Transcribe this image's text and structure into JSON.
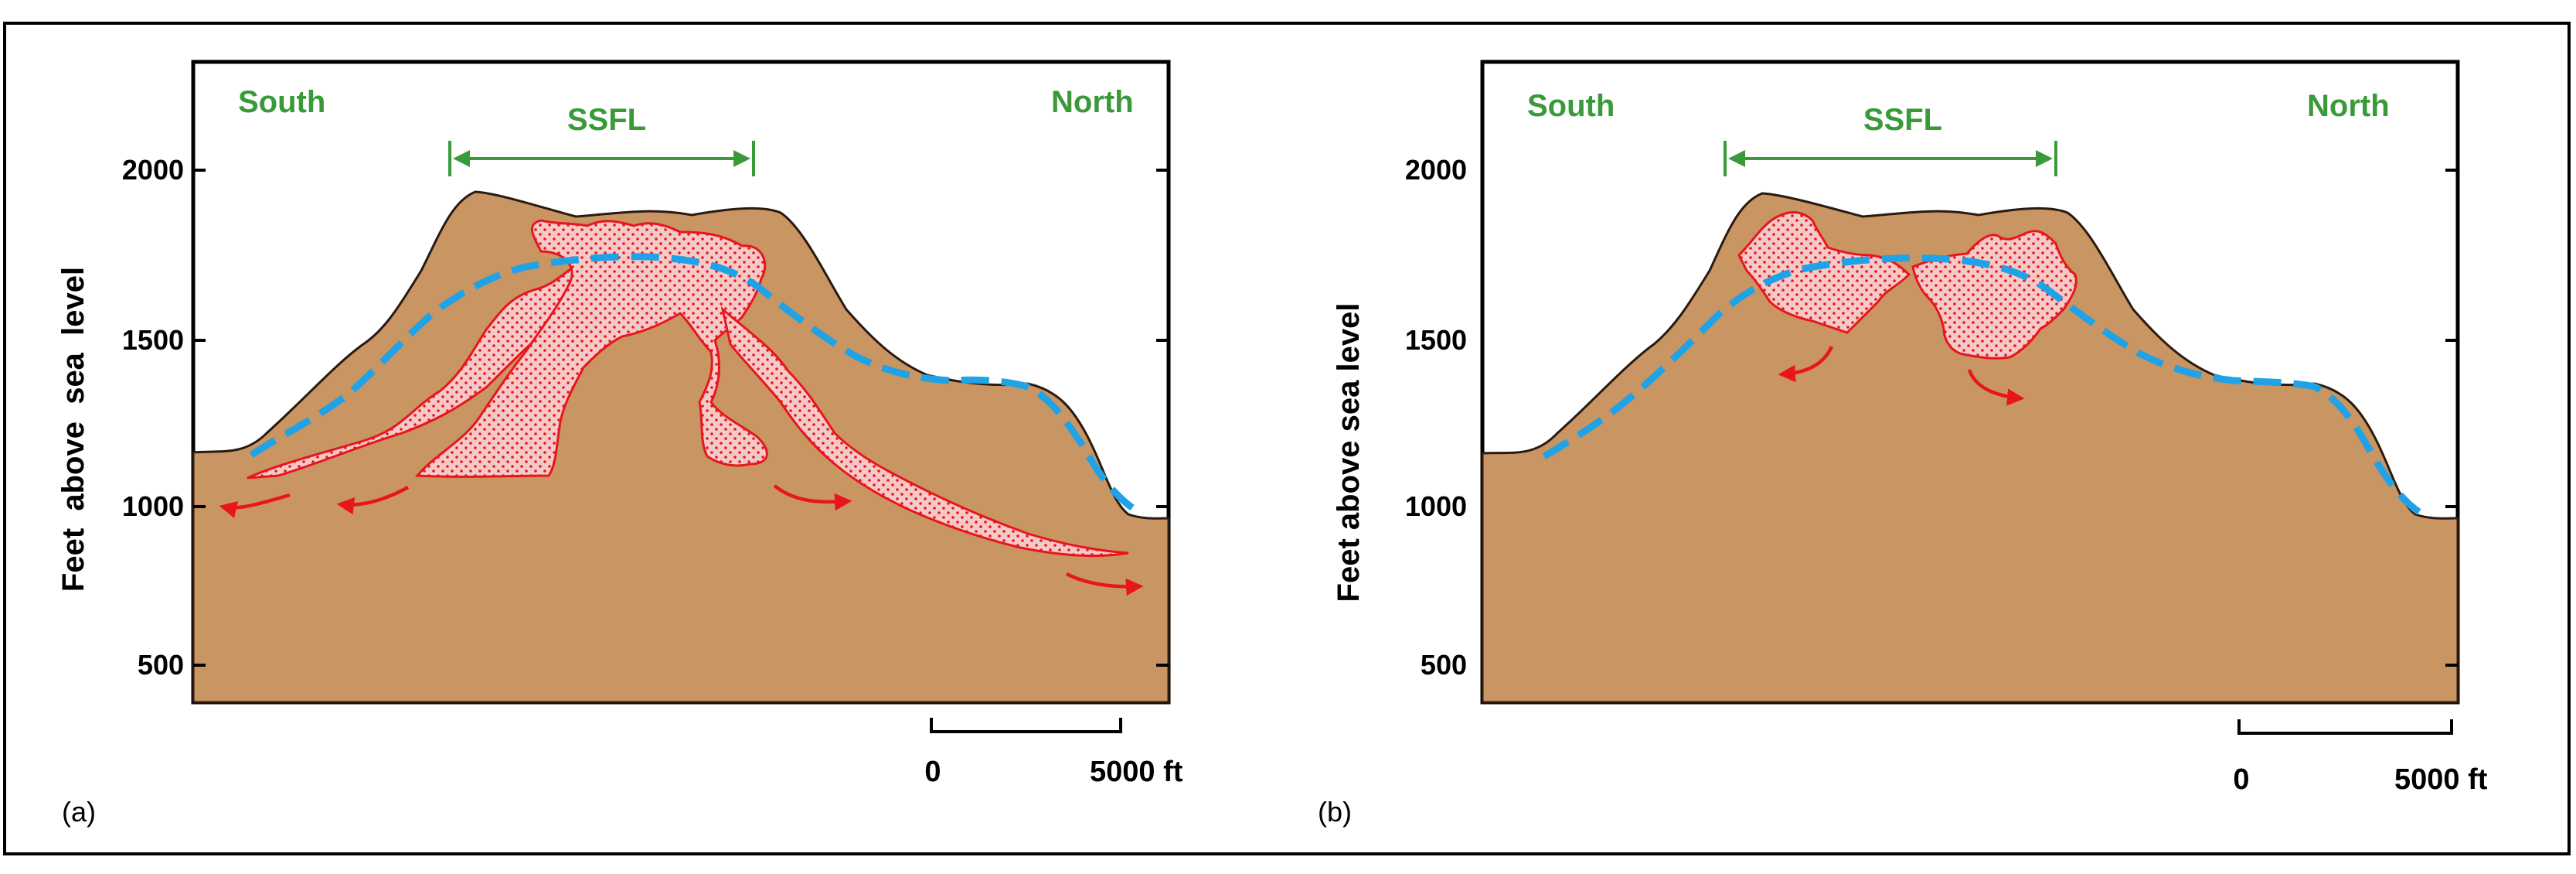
{
  "panels": [
    {
      "id": "a",
      "panel_label": "(a)",
      "y_axis_label": "Feet  above  sea  level",
      "y_ticks": [
        "2000",
        "1500",
        "1000",
        "500"
      ],
      "south_label": "South",
      "north_label": "North",
      "site_label": "SSFL",
      "scale_zero": "0",
      "scale_end": "5000 ft"
    },
    {
      "id": "b",
      "panel_label": "(b)",
      "y_axis_label": "Feet above sea level",
      "y_ticks": [
        "2000",
        "1500",
        "1000",
        "500"
      ],
      "south_label": "South",
      "north_label": "North",
      "site_label": "SSFL",
      "scale_zero": "0",
      "scale_end": "5000 ft"
    }
  ],
  "colors": {
    "ground": "#c99563",
    "ground_outline": "#2a1a10",
    "plume_fill": "#f6c9c9",
    "plume_outline": "#e8161c",
    "water_table": "#1fa2e6",
    "flow_arrow": "#e8161c",
    "green_label": "#3a9a3a",
    "frame": "#000000"
  }
}
